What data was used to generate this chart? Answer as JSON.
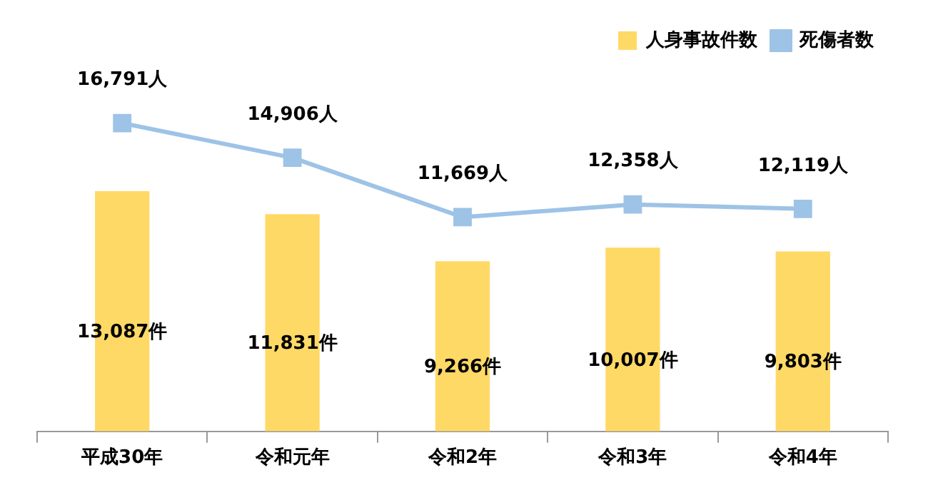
{
  "chart_data": {
    "type": "bar",
    "categories": [
      "平成30年",
      "令和元年",
      "令和2年",
      "令和3年",
      "令和4年"
    ],
    "series": [
      {
        "name": "人身事故件数",
        "color": "#ffd966",
        "values": [
          13087,
          11831,
          9266,
          10007,
          9803
        ],
        "value_labels": [
          "13,087件",
          "11,831件",
          "9,266件",
          "10,007件",
          "9,803件"
        ]
      },
      {
        "name": "死傷者数",
        "type": "line",
        "color": "#9dc3e6",
        "values": [
          16791,
          14906,
          11669,
          12358,
          12119
        ],
        "value_labels": [
          "16,791人",
          "14,906人",
          "11,669人",
          "12,358人",
          "12,119人"
        ]
      }
    ],
    "relative": false,
    "legend": "top right",
    "marker": "square",
    "grid": false
  }
}
